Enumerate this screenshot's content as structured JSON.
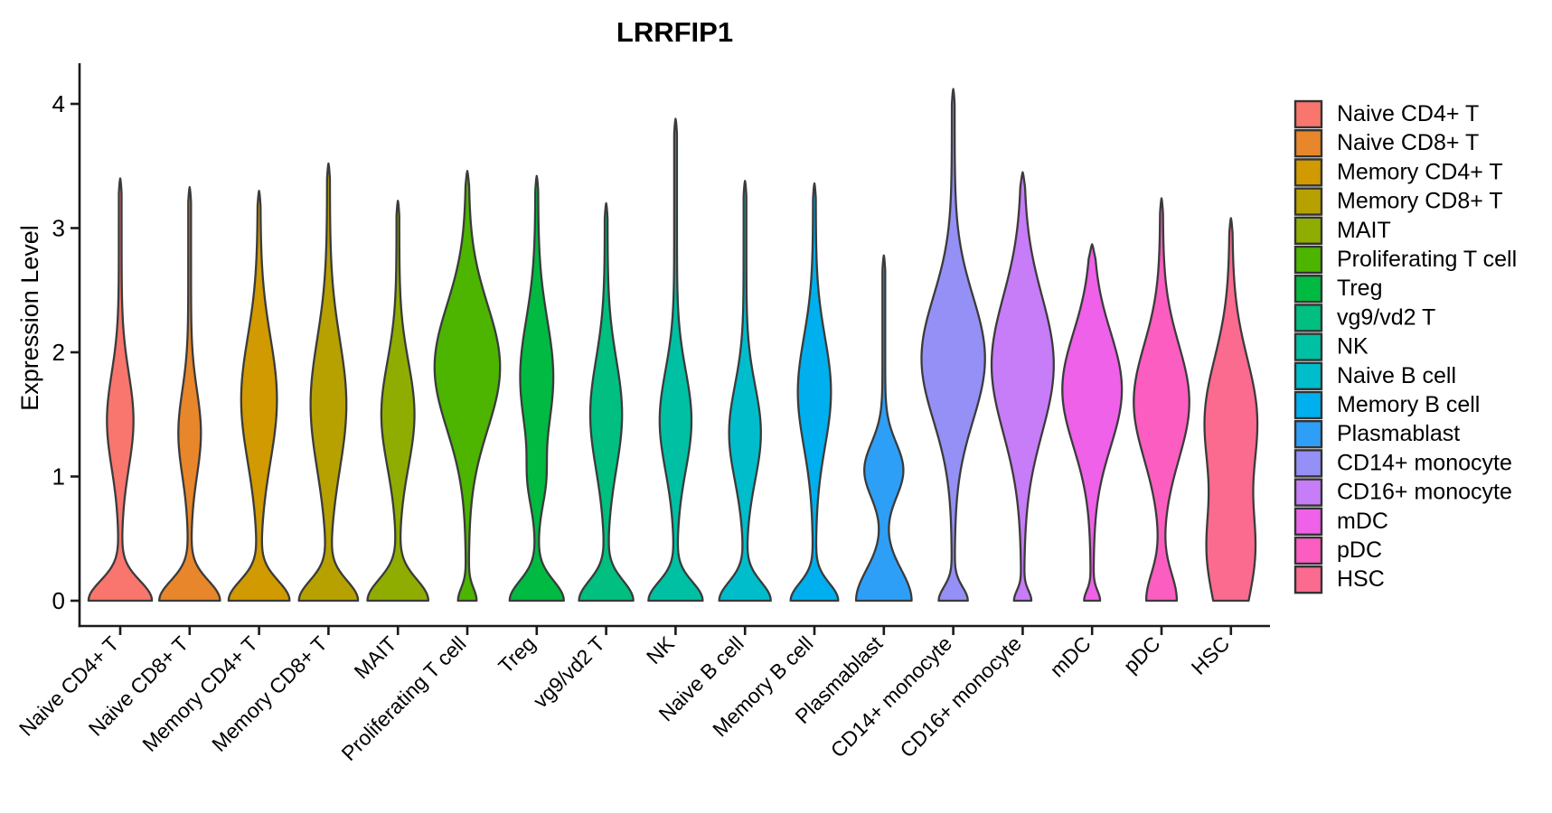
{
  "chart": {
    "title": "LRRFIP1",
    "ylabel": "Expression Level"
  },
  "chart_data": {
    "type": "violin",
    "title": "LRRFIP1",
    "xlabel": "",
    "ylabel": "Expression Level",
    "ylim": [
      0,
      4.35
    ],
    "yticks": [
      0,
      1,
      2,
      3,
      4
    ],
    "grid": false,
    "legend_position": "right",
    "outline_color": "#3B3B3B",
    "axis_color": "#1a1a1a",
    "categories": [
      "Naive CD4+ T",
      "Naive CD8+ T",
      "Memory CD4+ T",
      "Memory CD8+ T",
      "MAIT",
      "Proliferating T cell",
      "Treg",
      "vg9/vd2 T",
      "NK",
      "Naive B cell",
      "Memory B cell",
      "Plasmablast",
      "CD14+ monocyte",
      "CD16+ monocyte",
      "mDC",
      "pDC",
      "HSC"
    ],
    "colors": [
      "#F8766D",
      "#E8862B",
      "#D09A00",
      "#B6A100",
      "#8FAD00",
      "#4DB400",
      "#00BA42",
      "#00BF80",
      "#00C0A4",
      "#00BDCC",
      "#00AFED",
      "#2E9FF7",
      "#9590F5",
      "#C77CF8",
      "#EE61E8",
      "#FB5EC0",
      "#FB6B8F"
    ],
    "series": [
      {
        "name": "Naive CD4+ T",
        "color": "#F8766D",
        "max_expression": 3.4,
        "bumps": [
          {
            "center": 1.45,
            "sd": 0.38,
            "amp": 0.36
          }
        ],
        "base": {
          "center": 0,
          "sd": 0.16,
          "amp": 0.92
        }
      },
      {
        "name": "Naive CD8+ T",
        "color": "#E8862B",
        "max_expression": 3.33,
        "bumps": [
          {
            "center": 1.35,
            "sd": 0.34,
            "amp": 0.3
          }
        ],
        "base": {
          "center": 0,
          "sd": 0.16,
          "amp": 0.88
        }
      },
      {
        "name": "Memory CD4+ T",
        "color": "#D09A00",
        "max_expression": 3.3,
        "bumps": [
          {
            "center": 1.62,
            "sd": 0.5,
            "amp": 0.5
          }
        ],
        "base": {
          "center": 0,
          "sd": 0.16,
          "amp": 0.88
        }
      },
      {
        "name": "Memory CD8+ T",
        "color": "#B6A100",
        "max_expression": 3.52,
        "bumps": [
          {
            "center": 1.58,
            "sd": 0.52,
            "amp": 0.5
          }
        ],
        "base": {
          "center": 0,
          "sd": 0.16,
          "amp": 0.85
        }
      },
      {
        "name": "MAIT",
        "color": "#8FAD00",
        "max_expression": 3.22,
        "bumps": [
          {
            "center": 1.5,
            "sd": 0.42,
            "amp": 0.46
          }
        ],
        "base": {
          "center": 0,
          "sd": 0.17,
          "amp": 0.88
        }
      },
      {
        "name": "Proliferating T cell",
        "color": "#4DB400",
        "max_expression": 3.46,
        "bumps": [
          {
            "center": 1.88,
            "sd": 0.5,
            "amp": 0.95
          }
        ],
        "base": {
          "center": 0,
          "sd": 0.1,
          "amp": 0.24
        }
      },
      {
        "name": "Treg",
        "color": "#00BA42",
        "max_expression": 3.42,
        "bumps": [
          {
            "center": 1.8,
            "sd": 0.46,
            "amp": 0.46
          },
          {
            "center": 0.95,
            "sd": 0.2,
            "amp": 0.16
          }
        ],
        "base": {
          "center": 0,
          "sd": 0.16,
          "amp": 0.78
        }
      },
      {
        "name": "vg9/vd2 T",
        "color": "#00BF80",
        "max_expression": 3.2,
        "bumps": [
          {
            "center": 1.5,
            "sd": 0.44,
            "amp": 0.44
          }
        ],
        "base": {
          "center": 0,
          "sd": 0.16,
          "amp": 0.78
        }
      },
      {
        "name": "NK",
        "color": "#00C0A4",
        "max_expression": 3.88,
        "bumps": [
          {
            "center": 1.45,
            "sd": 0.4,
            "amp": 0.44
          }
        ],
        "base": {
          "center": 0,
          "sd": 0.15,
          "amp": 0.78
        }
      },
      {
        "name": "Naive B cell",
        "color": "#00BDCC",
        "max_expression": 3.38,
        "bumps": [
          {
            "center": 1.35,
            "sd": 0.38,
            "amp": 0.44
          }
        ],
        "base": {
          "center": 0,
          "sd": 0.15,
          "amp": 0.74
        }
      },
      {
        "name": "Memory B cell",
        "color": "#00AFED",
        "max_expression": 3.36,
        "bumps": [
          {
            "center": 1.68,
            "sd": 0.44,
            "amp": 0.46
          }
        ],
        "base": {
          "center": 0,
          "sd": 0.14,
          "amp": 0.68
        }
      },
      {
        "name": "Plasmablast",
        "color": "#2E9FF7",
        "max_expression": 2.78,
        "bumps": [
          {
            "center": 1.05,
            "sd": 0.22,
            "amp": 0.55
          }
        ],
        "base": {
          "center": 0,
          "sd": 0.25,
          "amp": 0.8
        }
      },
      {
        "name": "CD14+ monocyte",
        "color": "#9590F5",
        "max_expression": 4.12,
        "bumps": [
          {
            "center": 1.95,
            "sd": 0.5,
            "amp": 0.92
          }
        ],
        "base": {
          "center": 0,
          "sd": 0.11,
          "amp": 0.4
        }
      },
      {
        "name": "CD16+ monocyte",
        "color": "#C77CF8",
        "max_expression": 3.45,
        "bumps": [
          {
            "center": 1.9,
            "sd": 0.55,
            "amp": 0.9
          }
        ],
        "base": {
          "center": 0,
          "sd": 0.08,
          "amp": 0.22
        }
      },
      {
        "name": "mDC",
        "color": "#EE61E8",
        "max_expression": 2.87,
        "bumps": [
          {
            "center": 1.7,
            "sd": 0.46,
            "amp": 0.86
          }
        ],
        "base": {
          "center": 0,
          "sd": 0.08,
          "amp": 0.2
        }
      },
      {
        "name": "pDC",
        "color": "#FB5EC0",
        "max_expression": 3.24,
        "bumps": [
          {
            "center": 1.6,
            "sd": 0.46,
            "amp": 0.8
          }
        ],
        "base": {
          "center": 0,
          "sd": 0.22,
          "amp": 0.42
        }
      },
      {
        "name": "HSC",
        "color": "#FB6B8F",
        "max_expression": 3.08,
        "bumps": [
          {
            "center": 1.45,
            "sd": 0.5,
            "amp": 0.75
          },
          {
            "center": 0.45,
            "sd": 0.35,
            "amp": 0.42
          }
        ],
        "base": {
          "center": 0,
          "sd": 0.45,
          "amp": 0.3
        }
      }
    ]
  },
  "legend": {
    "entries": [
      "Naive CD4+ T",
      "Naive CD8+ T",
      "Memory CD4+ T",
      "Memory CD8+ T",
      "MAIT",
      "Proliferating T cell",
      "Treg",
      "vg9/vd2 T",
      "NK",
      "Naive B cell",
      "Memory B cell",
      "Plasmablast",
      "CD14+ monocyte",
      "CD16+ monocyte",
      "mDC",
      "pDC",
      "HSC"
    ]
  }
}
